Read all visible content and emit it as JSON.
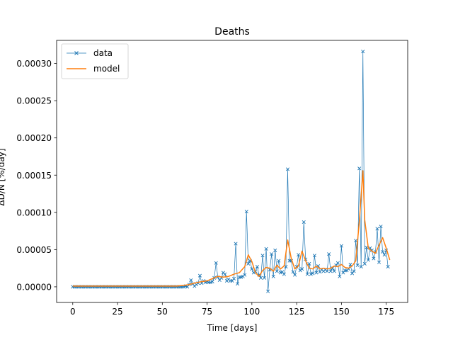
{
  "chart_data": {
    "type": "line",
    "title": "Deaths",
    "xlabel": "Time [days]",
    "ylabel": "ΔD/N [%/day]",
    "xlim": [
      -9,
      187
    ],
    "ylim": [
      -2.1e-05,
      0.000331
    ],
    "xticks": [
      0,
      25,
      50,
      75,
      100,
      125,
      150,
      175
    ],
    "xtick_labels": [
      "0",
      "25",
      "50",
      "75",
      "100",
      "125",
      "150",
      "175"
    ],
    "yticks": [
      0,
      5e-05,
      0.0001,
      0.00015,
      0.0002,
      0.00025,
      0.0003
    ],
    "ytick_labels": [
      "0.00000",
      "0.00005",
      "0.00010",
      "0.00015",
      "0.00020",
      "0.00025",
      "0.00030"
    ],
    "grid": false,
    "legend": "top-left",
    "series": [
      {
        "name": "data",
        "color": "#1f77b4",
        "marker": "x",
        "points": [
          [
            0,
            0
          ],
          [
            1,
            0
          ],
          [
            2,
            0
          ],
          [
            3,
            0
          ],
          [
            4,
            0
          ],
          [
            5,
            0
          ],
          [
            6,
            0
          ],
          [
            7,
            0
          ],
          [
            8,
            0
          ],
          [
            9,
            0
          ],
          [
            10,
            0
          ],
          [
            11,
            0
          ],
          [
            12,
            0
          ],
          [
            13,
            0
          ],
          [
            14,
            0
          ],
          [
            15,
            0
          ],
          [
            16,
            0
          ],
          [
            17,
            0
          ],
          [
            18,
            0
          ],
          [
            19,
            0
          ],
          [
            20,
            0
          ],
          [
            21,
            0
          ],
          [
            22,
            0
          ],
          [
            23,
            0
          ],
          [
            24,
            0
          ],
          [
            25,
            0
          ],
          [
            26,
            0
          ],
          [
            27,
            0
          ],
          [
            28,
            0
          ],
          [
            29,
            0
          ],
          [
            30,
            0
          ],
          [
            31,
            0
          ],
          [
            32,
            0
          ],
          [
            33,
            0
          ],
          [
            34,
            0
          ],
          [
            35,
            0
          ],
          [
            36,
            0
          ],
          [
            37,
            0
          ],
          [
            38,
            0
          ],
          [
            39,
            0
          ],
          [
            40,
            0
          ],
          [
            41,
            0
          ],
          [
            42,
            0
          ],
          [
            43,
            0
          ],
          [
            44,
            0
          ],
          [
            45,
            0
          ],
          [
            46,
            0
          ],
          [
            47,
            0
          ],
          [
            48,
            0
          ],
          [
            49,
            0
          ],
          [
            50,
            0
          ],
          [
            51,
            0
          ],
          [
            52,
            0
          ],
          [
            53,
            0
          ],
          [
            54,
            0
          ],
          [
            55,
            0
          ],
          [
            56,
            0
          ],
          [
            57,
            0
          ],
          [
            58,
            0
          ],
          [
            59,
            0
          ],
          [
            60,
            0
          ],
          [
            61,
            0
          ],
          [
            62,
            0
          ],
          [
            63,
            1e-06
          ],
          [
            64,
            0
          ],
          [
            65,
            3e-06
          ],
          [
            66,
            9e-06
          ],
          [
            67,
            4e-06
          ],
          [
            68,
            1e-06
          ],
          [
            69,
            3e-06
          ],
          [
            70,
            5e-06
          ],
          [
            71,
            1.5e-05
          ],
          [
            72,
            5e-06
          ],
          [
            73,
            8e-06
          ],
          [
            74,
            6e-06
          ],
          [
            75,
            7e-06
          ],
          [
            76,
            6e-06
          ],
          [
            77,
            6e-06
          ],
          [
            78,
            7e-06
          ],
          [
            79,
            1.2e-05
          ],
          [
            80,
            3.2e-05
          ],
          [
            81,
            1.3e-05
          ],
          [
            82,
            9e-06
          ],
          [
            83,
            1.2e-05
          ],
          [
            84,
            1.9e-05
          ],
          [
            85,
            1.7e-05
          ],
          [
            86,
            8e-06
          ],
          [
            87,
            1e-05
          ],
          [
            88,
            8e-06
          ],
          [
            89,
            8e-06
          ],
          [
            90,
            1.1e-05
          ],
          [
            91,
            5.8e-05
          ],
          [
            92,
            4e-06
          ],
          [
            93,
            1.3e-05
          ],
          [
            94,
            1.3e-05
          ],
          [
            95,
            1.4e-05
          ],
          [
            96,
            1.6e-05
          ],
          [
            97,
            0.000101
          ],
          [
            98,
            3.1e-05
          ],
          [
            99,
            3.5e-05
          ],
          [
            100,
            2.4e-05
          ],
          [
            101,
            1.9e-05
          ],
          [
            102,
            2.1e-05
          ],
          [
            103,
            2.7e-05
          ],
          [
            104,
            1.6e-05
          ],
          [
            105,
            1.2e-05
          ],
          [
            106,
            4.2e-05
          ],
          [
            107,
            1.2e-05
          ],
          [
            108,
            5.1e-05
          ],
          [
            109,
            -6e-06
          ],
          [
            110,
            2.3e-05
          ],
          [
            111,
            4.4e-05
          ],
          [
            112,
            1.4e-05
          ],
          [
            113,
            4.9e-05
          ],
          [
            114,
            2.1e-05
          ],
          [
            115,
            3.5e-05
          ],
          [
            116,
            1.9e-05
          ],
          [
            117,
            2e-05
          ],
          [
            118,
            1.7e-05
          ],
          [
            119,
            2.7e-05
          ],
          [
            120,
            0.000158
          ],
          [
            121,
            3.5e-05
          ],
          [
            122,
            3.5e-05
          ],
          [
            123,
            2e-05
          ],
          [
            124,
            1.6e-05
          ],
          [
            125,
            2.7e-05
          ],
          [
            126,
            4.3e-05
          ],
          [
            127,
            2.2e-05
          ],
          [
            128,
            2.4e-05
          ],
          [
            129,
            8.7e-05
          ],
          [
            130,
            3.7e-05
          ],
          [
            131,
            1.7e-05
          ],
          [
            132,
            3.1e-05
          ],
          [
            133,
            1.7e-05
          ],
          [
            134,
            1.8e-05
          ],
          [
            135,
            4.2e-05
          ],
          [
            136,
            1.9e-05
          ],
          [
            137,
            2.8e-05
          ],
          [
            138,
            2e-05
          ],
          [
            139,
            2.3e-05
          ],
          [
            140,
            2.1e-05
          ],
          [
            141,
            2.3e-05
          ],
          [
            142,
            2.1e-05
          ],
          [
            143,
            4.4e-05
          ],
          [
            144,
            2.1e-05
          ],
          [
            145,
            2.5e-05
          ],
          [
            146,
            2.1e-05
          ],
          [
            147,
            2.9e-05
          ],
          [
            148,
            3.2e-05
          ],
          [
            149,
            1.4e-05
          ],
          [
            150,
            5.5e-05
          ],
          [
            151,
            1.9e-05
          ],
          [
            152,
            2.2e-05
          ],
          [
            153,
            2.2e-05
          ],
          [
            154,
            2.4e-05
          ],
          [
            155,
            3e-05
          ],
          [
            156,
            1.8e-05
          ],
          [
            157,
            2.1e-05
          ],
          [
            158,
            6.2e-05
          ],
          [
            159,
            2.9e-05
          ],
          [
            160,
            0.000159
          ],
          [
            161,
            2.7e-05
          ],
          [
            162,
            0.000316
          ],
          [
            163,
            3.1e-05
          ],
          [
            164,
            5.3e-05
          ],
          [
            165,
            3.6e-05
          ],
          [
            166,
            5.2e-05
          ],
          [
            167,
            4.9e-05
          ],
          [
            168,
            3.8e-05
          ],
          [
            169,
            4.7e-05
          ],
          [
            170,
            7.8e-05
          ],
          [
            171,
            3.3e-05
          ],
          [
            172,
            8.1e-05
          ],
          [
            173,
            4.7e-05
          ],
          [
            174,
            4.3e-05
          ],
          [
            175,
            4.9e-05
          ],
          [
            176,
            2.7e-05
          ]
        ]
      },
      {
        "name": "model",
        "color": "#ff7f0e",
        "marker": "none",
        "points": [
          [
            0,
            1e-06
          ],
          [
            10,
            1e-06
          ],
          [
            20,
            1e-06
          ],
          [
            30,
            1e-06
          ],
          [
            40,
            1e-06
          ],
          [
            50,
            1e-06
          ],
          [
            58,
            1e-06
          ],
          [
            62,
            2e-06
          ],
          [
            65,
            3e-06
          ],
          [
            68,
            5e-06
          ],
          [
            72,
            7e-06
          ],
          [
            75,
            8e-06
          ],
          [
            78,
            1.1e-05
          ],
          [
            81,
            1.4e-05
          ],
          [
            84,
            1.3e-05
          ],
          [
            87,
            1.4e-05
          ],
          [
            90,
            1.7e-05
          ],
          [
            93,
            1.9e-05
          ],
          [
            96,
            2.7e-05
          ],
          [
            98,
            4.3e-05
          ],
          [
            100,
            3.4e-05
          ],
          [
            102,
            1.9e-05
          ],
          [
            104,
            1.4e-05
          ],
          [
            106,
            2.2e-05
          ],
          [
            108,
            2.6e-05
          ],
          [
            110,
            2.5e-05
          ],
          [
            112,
            2.1e-05
          ],
          [
            114,
            2.9e-05
          ],
          [
            116,
            2.4e-05
          ],
          [
            118,
            2.8e-05
          ],
          [
            120,
            6.3e-05
          ],
          [
            122,
            3.8e-05
          ],
          [
            124,
            2.4e-05
          ],
          [
            126,
            2.8e-05
          ],
          [
            128,
            4.8e-05
          ],
          [
            130,
            3.5e-05
          ],
          [
            132,
            2.5e-05
          ],
          [
            134,
            2.4e-05
          ],
          [
            136,
            2.8e-05
          ],
          [
            138,
            2.4e-05
          ],
          [
            140,
            2.5e-05
          ],
          [
            142,
            2.4e-05
          ],
          [
            144,
            2.5e-05
          ],
          [
            146,
            2.8e-05
          ],
          [
            148,
            2.7e-05
          ],
          [
            150,
            3e-05
          ],
          [
            152,
            2.6e-05
          ],
          [
            154,
            2.5e-05
          ],
          [
            156,
            2.8e-05
          ],
          [
            158,
            3.5e-05
          ],
          [
            160,
            8.8e-05
          ],
          [
            162,
            0.000156
          ],
          [
            163,
            9e-05
          ],
          [
            165,
            5.2e-05
          ],
          [
            167,
            4.8e-05
          ],
          [
            169,
            4.5e-05
          ],
          [
            171,
            5.6e-05
          ],
          [
            173,
            6.6e-05
          ],
          [
            175,
            5.2e-05
          ],
          [
            177,
            3.6e-05
          ]
        ]
      }
    ]
  }
}
